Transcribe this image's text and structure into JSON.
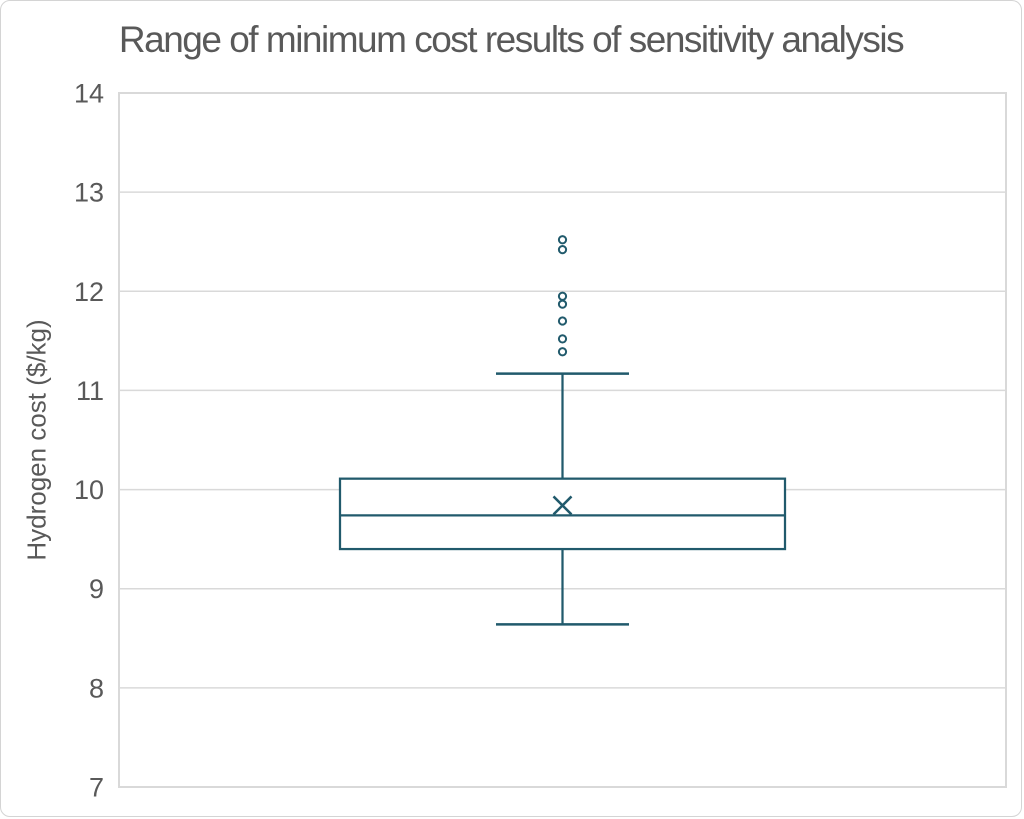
{
  "chart_data": {
    "type": "boxplot",
    "title": "Range of minimum cost results of sensitivity analysis",
    "xlabel": "",
    "ylabel": "Hydrogen cost ($/kg)",
    "ylim": [
      7,
      14
    ],
    "yticks": [
      7,
      8,
      9,
      10,
      11,
      12,
      13,
      14
    ],
    "grid": true,
    "legend": false,
    "series": [
      {
        "whisker_low": 8.64,
        "q1": 9.4,
        "median": 9.74,
        "q3": 10.11,
        "whisker_high": 11.17,
        "mean": 9.84,
        "outliers": [
          11.39,
          11.52,
          11.7,
          11.87,
          11.95,
          12.42,
          12.52
        ]
      }
    ],
    "colors": {
      "series_stroke": "#215a6c",
      "box_fill": "#ffffff",
      "gridline": "#d9d9d9",
      "plot_border": "#d9d9d9",
      "text": "#595959",
      "background": "#ffffff"
    }
  }
}
